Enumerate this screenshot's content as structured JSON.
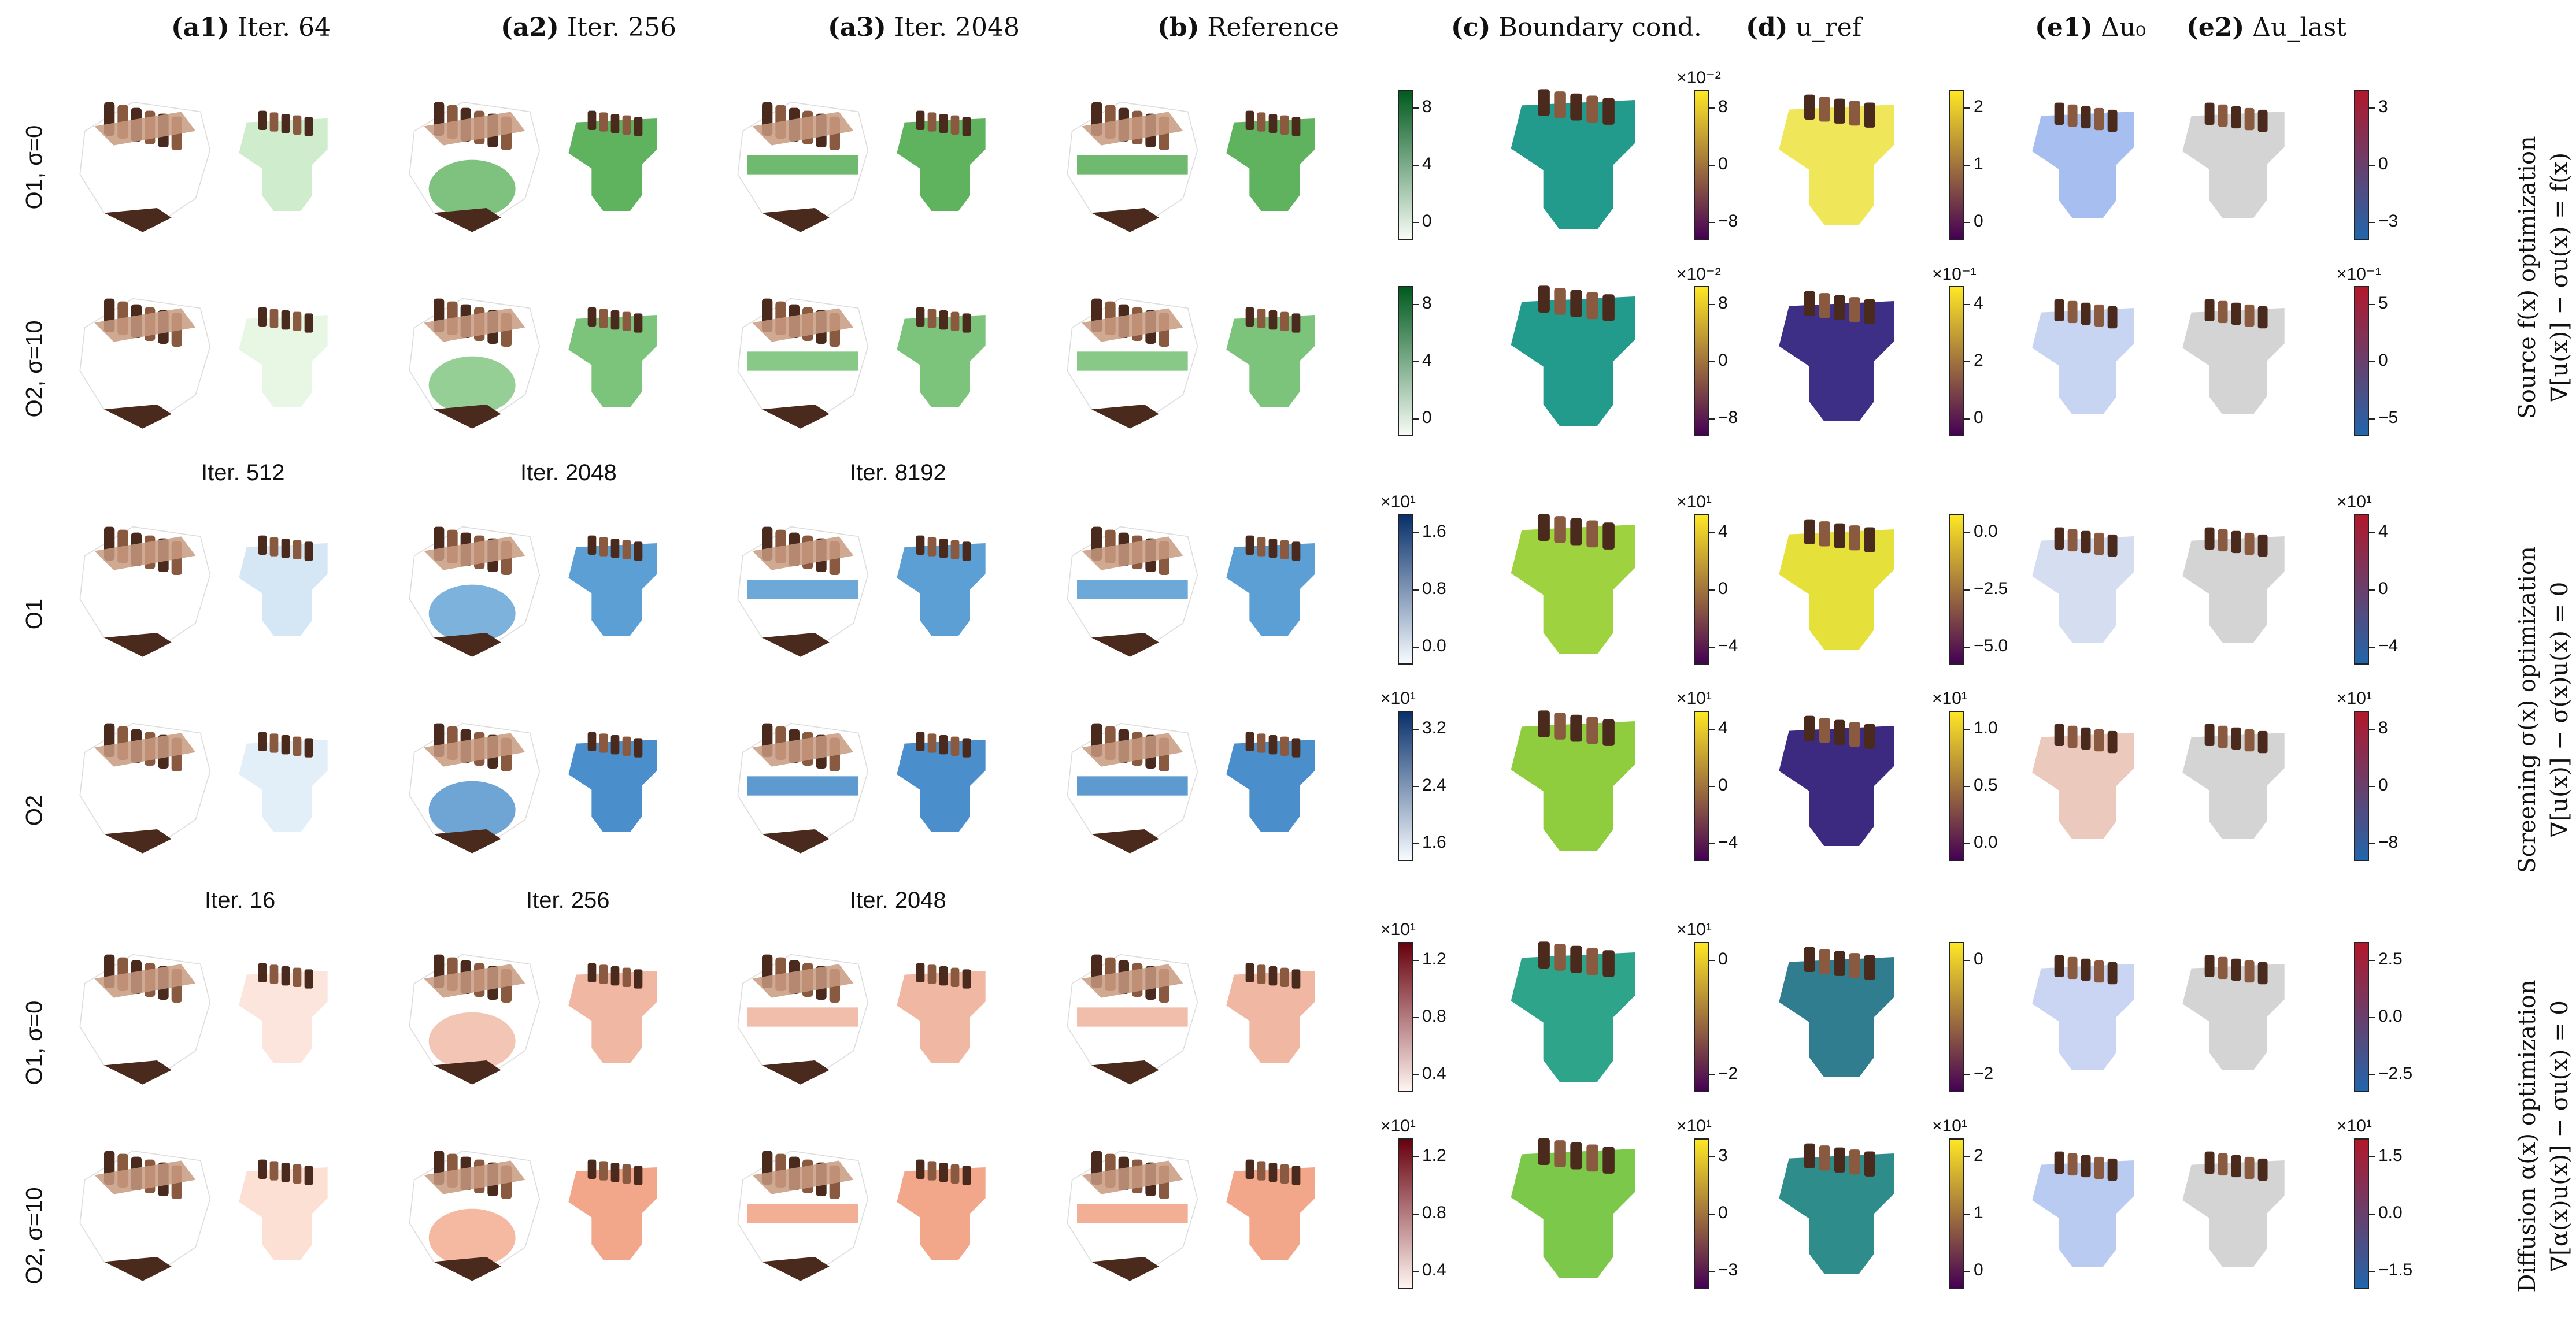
{
  "columns": [
    {
      "bold": "(a1)",
      "text": "Iter. 64"
    },
    {
      "bold": "(a2)",
      "text": "Iter. 256"
    },
    {
      "bold": "(a3)",
      "text": "Iter. 2048"
    },
    {
      "bold": "(b)",
      "text": "Reference"
    },
    {
      "bold": "(c)",
      "text": "Boundary cond."
    },
    {
      "bold": "(d)",
      "text": "u_ref"
    },
    {
      "bold": "(e1)",
      "text": "Δu₀"
    },
    {
      "bold": "(e2)",
      "text": "Δu_last"
    }
  ],
  "rows": [
    {
      "label": "O1, σ=0",
      "fill": "#5fb35f",
      "fill2": "#cfeccc",
      "bc_color": "#229a8c",
      "u_color": "#f0e65a",
      "e_color": "#a7bff0",
      "bar_top": "#005a1e",
      "bar_bot": "#f7fcf5",
      "bar_ticks": [
        "8",
        "4",
        "0"
      ],
      "bc_scale": "×10⁻²",
      "bc_ticks": [
        "8",
        "0",
        "−8"
      ],
      "u_scale": "",
      "u_ticks": [
        "2",
        "1",
        "0"
      ],
      "e_scale": "",
      "e_ticks": [
        "3",
        "0",
        "−3"
      ]
    },
    {
      "label": "O2, σ=10",
      "fill": "#7cc37b",
      "fill2": "#e8f6e4",
      "bc_color": "#229a8c",
      "u_color": "#3d2f86",
      "e_color": "#c7d5f2",
      "bar_top": "#005a1e",
      "bar_bot": "#f7fcf5",
      "bar_ticks": [
        "8",
        "4",
        "0"
      ],
      "bc_scale": "×10⁻²",
      "bc_ticks": [
        "8",
        "0",
        "−8"
      ],
      "u_scale": "×10⁻¹",
      "u_ticks": [
        "4",
        "2",
        "0"
      ],
      "e_scale": "×10⁻¹",
      "e_ticks": [
        "5",
        "0",
        "−5"
      ]
    },
    {
      "label": "O1",
      "fill": "#5c9fd4",
      "fill2": "#d5e6f5",
      "bc_color": "#9fd23f",
      "u_color": "#e6e03a",
      "e_color": "#d4def0",
      "bar_top": "#08306b",
      "bar_bot": "#f7fbff",
      "bar_ticks": [
        "1.6",
        "0.8",
        "0.0"
      ],
      "bar_scale": "×10¹",
      "bc_scale": "×10¹",
      "bc_ticks": [
        "4",
        "0",
        "−4"
      ],
      "u_scale": "",
      "u_ticks": [
        "0.0",
        "−2.5",
        "−5.0"
      ],
      "e_scale": "×10¹",
      "e_ticks": [
        "4",
        "0",
        "−4"
      ]
    },
    {
      "label": "O2",
      "fill": "#4a8fcb",
      "fill2": "#e2eef8",
      "bc_color": "#8fcd3f",
      "u_color": "#3b2a80",
      "e_color": "#ecc9bd",
      "bar_top": "#08306b",
      "bar_bot": "#f7fbff",
      "bar_ticks": [
        "3.2",
        "2.4",
        "1.6"
      ],
      "bar_scale": "×10¹",
      "bc_scale": "×10¹",
      "bc_ticks": [
        "4",
        "0",
        "−4"
      ],
      "u_scale": "×10¹",
      "u_ticks": [
        "1.0",
        "0.5",
        "0.0"
      ],
      "e_scale": "×10¹",
      "e_ticks": [
        "8",
        "0",
        "−8"
      ]
    },
    {
      "label": "O1, σ=0",
      "fill": "#f0b7a3",
      "fill2": "#fbe5dc",
      "bc_color": "#2ea58a",
      "u_color": "#2f7d8e",
      "e_color": "#c9d5f2",
      "bar_top": "#67000d",
      "bar_bot": "#fff5f0",
      "bar_ticks": [
        "1.2",
        "0.8",
        "0.4"
      ],
      "bar_scale": "×10¹",
      "bc_scale": "×10¹",
      "bc_ticks": [
        "0",
        "−2"
      ],
      "u_scale": "",
      "u_ticks": [
        "0",
        "−2"
      ],
      "e_scale": "",
      "e_ticks": [
        "2.5",
        "0.0",
        "−2.5"
      ]
    },
    {
      "label": "O2, σ=10",
      "fill": "#f2a68a",
      "fill2": "#fce0d4",
      "bc_color": "#7cc84a",
      "u_color": "#2e8c8a",
      "e_color": "#b9cbf0",
      "bar_top": "#67000d",
      "bar_bot": "#fff5f0",
      "bar_ticks": [
        "1.2",
        "0.8",
        "0.4"
      ],
      "bar_scale": "×10¹",
      "bc_scale": "×10¹",
      "bc_ticks": [
        "3",
        "0",
        "−3"
      ],
      "u_scale": "×10¹",
      "u_ticks": [
        "2",
        "1",
        "0"
      ],
      "e_scale": "×10¹",
      "e_ticks": [
        "1.5",
        "0.0",
        "−1.5"
      ]
    }
  ],
  "iter_labels": {
    "screening": [
      "Iter. 512",
      "Iter. 2048",
      "Iter. 8192"
    ],
    "diffusion": [
      "Iter. 16",
      "Iter. 256",
      "Iter. 2048"
    ]
  },
  "side_labels": {
    "source": [
      "Source f(x) optimization",
      "∇[u(x)] − σu(x) = f(x)"
    ],
    "screening": [
      "Screening σ(x) optimization",
      "∇[u(x)] − σ(x)u(x) = 0"
    ],
    "diffusion": [
      "Diffusion α(x) optimization",
      "∇[α(x)u(x)] − σu(x) = 0"
    ]
  },
  "colors": {
    "engine_dark": "#4a2a1c",
    "engine_mid": "#8a5a40",
    "engine_light": "#c89a80",
    "diverge_top": "#b2182b",
    "diverge_mid": "#f7f7f7",
    "diverge_bot": "#2166ac",
    "viridis_top": "#fde725",
    "viridis_mid": "#21918c",
    "viridis_bot": "#440154"
  }
}
